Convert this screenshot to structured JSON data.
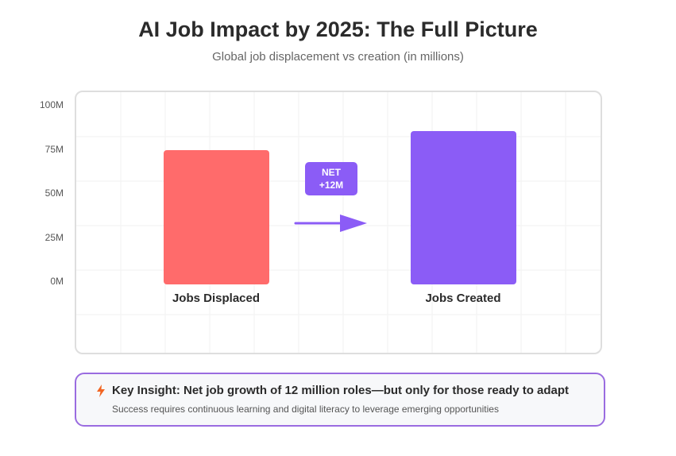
{
  "header": {
    "title": "AI Job Impact by 2025: The Full Picture",
    "subtitle": "Global job displacement vs creation (in millions)"
  },
  "chart_data": {
    "type": "bar",
    "categories": [
      "Jobs Displaced",
      "Jobs Created"
    ],
    "values": [
      85,
      97
    ],
    "unit": "M",
    "y_ticks": [
      "100M",
      "75M",
      "50M",
      "25M",
      "0M"
    ],
    "grid": true,
    "colors": [
      "#ff6b6b",
      "#8b5cf6"
    ],
    "annotation": {
      "line1": "NET",
      "line2": "+12M",
      "color": "#8b5cf6"
    }
  },
  "insight": {
    "icon": "lightning-icon",
    "title": "Key Insight: Net job growth of 12 million roles—but only for those ready to adapt",
    "text": "Success requires continuous learning and digital literacy to leverage emerging opportunities",
    "border_color": "#9a6ce0",
    "icon_color": "#f26522"
  }
}
